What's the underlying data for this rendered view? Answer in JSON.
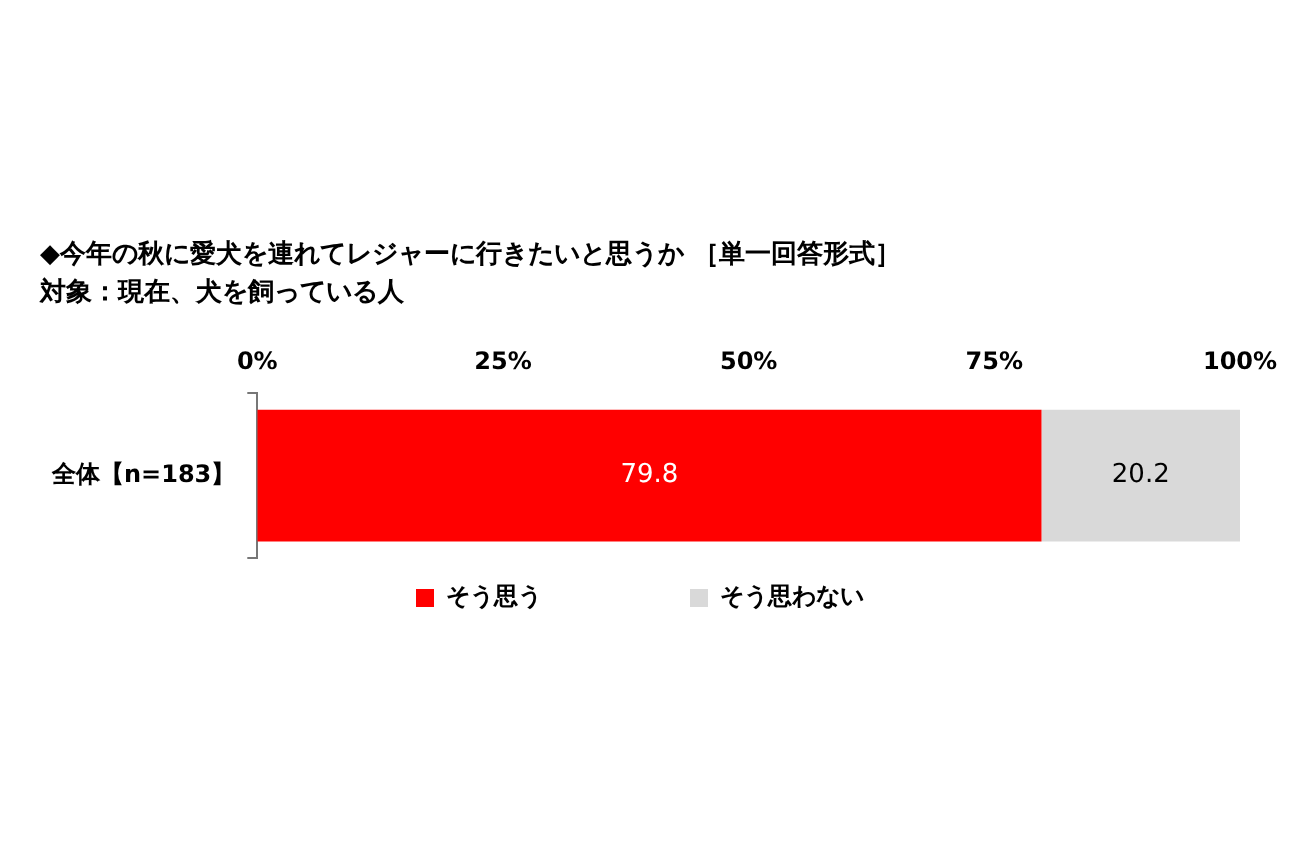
{
  "chart_data": {
    "type": "bar",
    "orientation": "horizontal",
    "stacked": true,
    "title": "◆今年の秋に愛犬を連れてレジャーに行きたいと思うか ［単一回答形式］",
    "subtitle": "対象：現在、犬を飼っている人",
    "categories": [
      "全体【n=183】"
    ],
    "series": [
      {
        "name": "そう思う",
        "color": "#ff0000",
        "values": [
          79.8
        ]
      },
      {
        "name": "そう思わない",
        "color": "#d9d9d9",
        "values": [
          20.2
        ]
      }
    ],
    "xlim": [
      0,
      100
    ],
    "xticks": [
      {
        "value": 0,
        "label": "0%"
      },
      {
        "value": 25,
        "label": "25%"
      },
      {
        "value": 50,
        "label": "50%"
      },
      {
        "value": 75,
        "label": "75%"
      },
      {
        "value": 100,
        "label": "100%"
      }
    ],
    "data_labels": true,
    "grid": false,
    "legend": "bottom"
  }
}
